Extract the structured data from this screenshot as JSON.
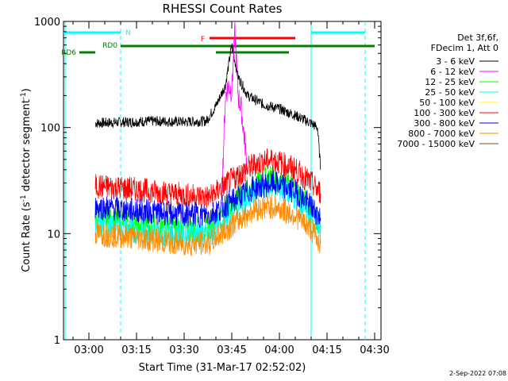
{
  "chart_data": {
    "type": "line",
    "title": "RHESSI Count Rates",
    "xlabel": "Start Time (31-Mar-17 02:52:02)",
    "ylabel_main": "Count Rate (s",
    "ylabel_sup1": "-1",
    "ylabel_mid": " detector segment",
    "ylabel_sup2": "-1",
    "ylabel_end": ")",
    "yscale": "log",
    "ylim": [
      1,
      1000
    ],
    "xlim": [
      "02:52",
      "04:32"
    ],
    "x_ticks": [
      "03:00",
      "03:15",
      "03:30",
      "03:45",
      "04:00",
      "04:15",
      "04:30"
    ],
    "y_ticks": [
      "1",
      "10",
      "100",
      "1000"
    ],
    "legend_header": [
      "Det 3f,6f,",
      "FDecim 1, Att 0"
    ],
    "legend_placement": "right",
    "footer": "2-Sep-2022 07:08",
    "series": [
      {
        "name": "3 - 6 keV",
        "color": "#000000",
        "x": [
          "03:02",
          "03:10",
          "03:20",
          "03:30",
          "03:37",
          "03:40",
          "03:43",
          "03:45",
          "03:47",
          "03:50",
          "03:55",
          "04:00",
          "04:05",
          "04:10",
          "04:12",
          "04:13"
        ],
        "values": [
          110,
          112,
          115,
          113,
          115,
          160,
          250,
          600,
          300,
          200,
          165,
          150,
          130,
          110,
          100,
          40
        ]
      },
      {
        "name": "6 - 12 keV",
        "color": "#ff00ff",
        "x": [
          "03:42",
          "03:43",
          "03:44",
          "03:45",
          "03:46",
          "03:47",
          "03:48",
          "03:50"
        ],
        "values": [
          30,
          200,
          250,
          220,
          800,
          200,
          150,
          40
        ]
      },
      {
        "name": "12 - 25 keV",
        "color": "#00ff00",
        "x": [
          "03:02",
          "03:10",
          "03:20",
          "03:30",
          "03:38",
          "03:45",
          "03:52",
          "03:58",
          "04:05",
          "04:10",
          "04:13"
        ],
        "values": [
          14,
          13,
          12,
          11,
          11,
          20,
          30,
          35,
          27,
          17,
          12
        ]
      },
      {
        "name": "25 - 50 keV",
        "color": "#00ffff",
        "x": [
          "03:02",
          "03:10",
          "03:20",
          "03:30",
          "03:38",
          "03:45",
          "03:52",
          "03:58",
          "04:05",
          "04:10",
          "04:13"
        ],
        "values": [
          12,
          11,
          10,
          10,
          10,
          16,
          24,
          28,
          22,
          15,
          11
        ]
      },
      {
        "name": "50 - 100 keV",
        "color": "#ffff00",
        "x": [],
        "values": []
      },
      {
        "name": "100 - 300 keV",
        "color": "#ff0000",
        "x": [
          "03:02",
          "03:10",
          "03:20",
          "03:30",
          "03:38",
          "03:45",
          "03:52",
          "03:58",
          "04:05",
          "04:10",
          "04:13"
        ],
        "values": [
          28,
          27,
          25,
          23,
          22,
          32,
          45,
          50,
          40,
          30,
          24
        ]
      },
      {
        "name": "300 - 800 keV",
        "color": "#0000ff",
        "x": [
          "03:02",
          "03:10",
          "03:20",
          "03:30",
          "03:38",
          "03:45",
          "03:52",
          "03:58",
          "04:05",
          "04:10",
          "04:13"
        ],
        "values": [
          18,
          17,
          16,
          15,
          15,
          20,
          27,
          30,
          25,
          18,
          14
        ]
      },
      {
        "name": "800 - 7000 keV",
        "color": "#ff8c00",
        "x": [
          "03:02",
          "03:10",
          "03:20",
          "03:30",
          "03:38",
          "03:45",
          "03:52",
          "03:58",
          "04:05",
          "04:10",
          "04:13"
        ],
        "values": [
          10,
          9.5,
          8.8,
          8,
          8.2,
          12,
          17,
          18,
          15,
          11,
          8
        ]
      },
      {
        "name": "7000 - 15000 keV",
        "color": "#8b4513",
        "x": [],
        "values": []
      }
    ],
    "annotations": {
      "N": {
        "label": "N",
        "color": "#00ffff",
        "intervals": [
          [
            "02:52",
            "03:10"
          ],
          [
            "04:10",
            "04:27"
          ]
        ]
      },
      "F": {
        "label": "F",
        "color": "#ff0000",
        "intervals": [
          [
            "03:38",
            "04:05"
          ]
        ]
      },
      "RD0": {
        "label": "RD0",
        "color": "#008000",
        "intervals": [
          [
            "03:10",
            "04:30"
          ]
        ]
      },
      "RD6": {
        "label": "RD6",
        "color": "#008000",
        "intervals": [
          [
            "02:57",
            "03:02"
          ],
          [
            "03:40",
            "04:03"
          ]
        ]
      }
    }
  }
}
